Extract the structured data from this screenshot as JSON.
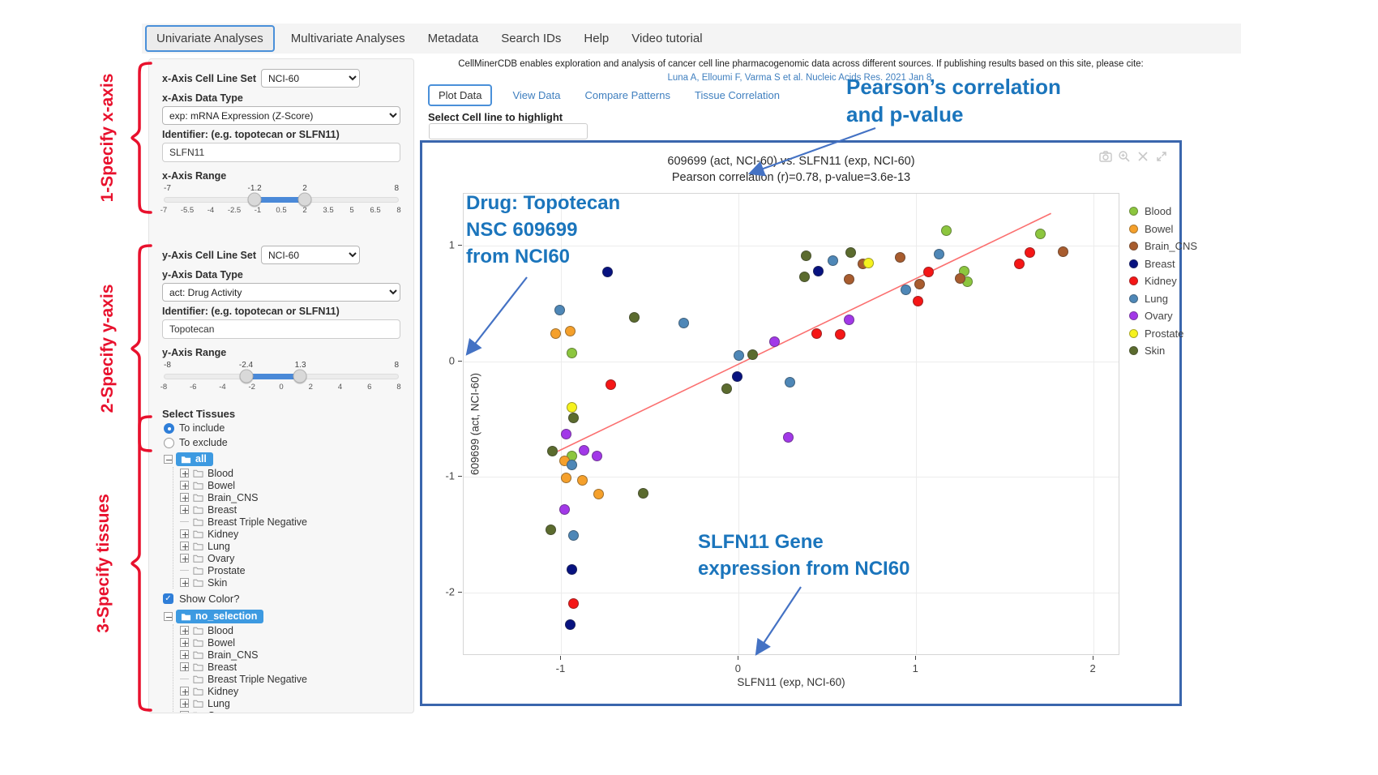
{
  "nav": {
    "items": [
      {
        "label": "Univariate Analyses",
        "active": true
      },
      {
        "label": "Multivariate Analyses",
        "active": false
      },
      {
        "label": "Metadata",
        "active": false
      },
      {
        "label": "Search IDs",
        "active": false
      },
      {
        "label": "Help",
        "active": false
      },
      {
        "label": "Video tutorial",
        "active": false
      }
    ]
  },
  "steps": {
    "step1": "1-Specify x-axis",
    "step2": "2-Specify y-axis",
    "step3": "3-Specify tissues"
  },
  "sidebar": {
    "x_axis": {
      "cell_line_set_label": "x-Axis Cell Line Set",
      "cell_line_set_value": "NCI-60",
      "data_type_label": "x-Axis Data Type",
      "data_type_value": "exp: mRNA Expression (Z-Score)",
      "identifier_label": "Identifier: (e.g. topotecan or SLFN11)",
      "identifier_value": "SLFN11",
      "range_label": "x-Axis Range",
      "range": {
        "min": -7,
        "max": 8,
        "low": -1.2,
        "high": 2,
        "min_label": "-7",
        "max_label": "8",
        "low_label": "-1.2",
        "high_label": "2",
        "ticks": [
          "-7",
          "-5.5",
          "-4",
          "-2.5",
          "-1",
          "0.5",
          "2",
          "3.5",
          "5",
          "6.5",
          "8"
        ]
      }
    },
    "y_axis": {
      "cell_line_set_label": "y-Axis Cell Line Set",
      "cell_line_set_value": "NCI-60",
      "data_type_label": "y-Axis Data Type",
      "data_type_value": "act: Drug Activity",
      "identifier_label": "Identifier: (e.g. topotecan or SLFN11)",
      "identifier_value": "Topotecan",
      "range_label": "y-Axis Range",
      "range": {
        "min": -8,
        "max": 8,
        "low": -2.4,
        "high": 1.3,
        "min_label": "-8",
        "max_label": "8",
        "low_label": "-2.4",
        "high_label": "1.3",
        "ticks": [
          "-8",
          "-6",
          "-4",
          "-2",
          "0",
          "2",
          "4",
          "6",
          "8"
        ]
      }
    },
    "tissues": {
      "label": "Select Tissues",
      "include_option": "To include",
      "exclude_option": "To exclude",
      "selected": "To include"
    },
    "tree_include": {
      "root": "all",
      "items": [
        {
          "label": "Blood",
          "leaf": false
        },
        {
          "label": "Bowel",
          "leaf": false
        },
        {
          "label": "Brain_CNS",
          "leaf": false
        },
        {
          "label": "Breast",
          "leaf": false
        },
        {
          "label": "Breast Triple Negative",
          "leaf": true
        },
        {
          "label": "Kidney",
          "leaf": false
        },
        {
          "label": "Lung",
          "leaf": false
        },
        {
          "label": "Ovary",
          "leaf": false
        },
        {
          "label": "Prostate",
          "leaf": true
        },
        {
          "label": "Skin",
          "leaf": false
        }
      ]
    },
    "show_color_label": "Show Color?",
    "show_color_checked": true,
    "tree_exclude": {
      "root": "no_selection",
      "items": [
        {
          "label": "Blood",
          "leaf": false
        },
        {
          "label": "Bowel",
          "leaf": false
        },
        {
          "label": "Brain_CNS",
          "leaf": false
        },
        {
          "label": "Breast",
          "leaf": false
        },
        {
          "label": "Breast Triple Negative",
          "leaf": true
        },
        {
          "label": "Kidney",
          "leaf": false
        },
        {
          "label": "Lung",
          "leaf": false
        },
        {
          "label": "Ovary",
          "leaf": false
        },
        {
          "label": "Prostate",
          "leaf": true
        },
        {
          "label": "Skin",
          "leaf": false
        }
      ]
    }
  },
  "main": {
    "citation_text": "CellMinerCDB enables exploration and analysis of cancer cell line pharmacogenomic data across different sources. If publishing results based on this site, please cite:",
    "citation_link": "Luna A, Elloumi F, Varma S et al. Nucleic Acids Res. 2021 Jan 8.",
    "tabs": [
      {
        "label": "Plot Data",
        "active": true
      },
      {
        "label": "View Data",
        "active": false
      },
      {
        "label": "Compare Patterns",
        "active": false
      },
      {
        "label": "Tissue Correlation",
        "active": false
      }
    ],
    "highlight_label": "Select Cell line to highlight"
  },
  "annotations": {
    "color": "#1b75bc",
    "pearson": {
      "line1": "Pearson’s correlation",
      "line2": "and p-value"
    },
    "drug": {
      "line1": "Drug: Topotecan",
      "line2": "NSC 609699",
      "line3": "from NCI60"
    },
    "gene": {
      "line1": "SLFN11 Gene",
      "line2": "expression from NCI60"
    }
  },
  "modebar": {
    "icons": [
      "camera",
      "zoom-in",
      "close",
      "expand"
    ]
  },
  "chart_data": {
    "type": "scatter",
    "title": "609699 (act, NCI-60) vs. SLFN11 (exp, NCI-60)",
    "subtitle": "Pearson correlation (r)=0.78, p-value=3.6e-13",
    "xlabel": "SLFN11 (exp, NCI-60)",
    "ylabel": "609699 (act, NCI-60)",
    "xlim": [
      -1.55,
      2.15
    ],
    "ylim": [
      -2.55,
      1.45
    ],
    "xticks": [
      -1,
      0,
      1,
      2
    ],
    "yticks": [
      1,
      0,
      -1,
      -2
    ],
    "grid": true,
    "legend_position": "right",
    "regression_line": {
      "x1": -1.02,
      "y1": -0.78,
      "x2": 1.76,
      "y2": 1.28,
      "color": "#fb7070"
    },
    "series": [
      {
        "name": "Blood",
        "color": "#8cc63e",
        "points": [
          [
            1.17,
            1.13
          ],
          [
            1.7,
            1.1
          ],
          [
            1.27,
            0.78
          ],
          [
            1.29,
            0.69
          ],
          [
            -0.94,
            0.07
          ],
          [
            -0.94,
            -0.82
          ]
        ]
      },
      {
        "name": "Bowel",
        "color": "#f5a02b",
        "points": [
          [
            -1.03,
            0.24
          ],
          [
            -0.95,
            0.26
          ],
          [
            -0.98,
            -0.86
          ],
          [
            -0.97,
            -1.01
          ],
          [
            -0.88,
            -1.03
          ],
          [
            -0.79,
            -1.15
          ]
        ]
      },
      {
        "name": "Brain_CNS",
        "color": "#a85c2e",
        "points": [
          [
            0.91,
            0.9
          ],
          [
            1.83,
            0.95
          ],
          [
            0.7,
            0.84
          ],
          [
            0.62,
            0.71
          ],
          [
            1.25,
            0.72
          ],
          [
            1.02,
            0.67
          ]
        ]
      },
      {
        "name": "Breast",
        "color": "#071280",
        "points": [
          [
            -0.74,
            0.77
          ],
          [
            0.45,
            0.78
          ],
          [
            -0.01,
            -0.13
          ],
          [
            -0.94,
            -1.8
          ],
          [
            -0.95,
            -2.28
          ]
        ]
      },
      {
        "name": "Kidney",
        "color": "#f51616",
        "points": [
          [
            1.64,
            0.94
          ],
          [
            1.58,
            0.84
          ],
          [
            1.07,
            0.77
          ],
          [
            1.01,
            0.52
          ],
          [
            0.44,
            0.24
          ],
          [
            0.57,
            0.23
          ],
          [
            -0.72,
            -0.2
          ],
          [
            -0.93,
            -2.1
          ]
        ]
      },
      {
        "name": "Lung",
        "color": "#4e87b7",
        "points": [
          [
            1.13,
            0.93
          ],
          [
            0.53,
            0.87
          ],
          [
            0.94,
            0.62
          ],
          [
            -1.01,
            0.44
          ],
          [
            -0.31,
            0.33
          ],
          [
            0.0,
            0.05
          ],
          [
            0.29,
            -0.18
          ],
          [
            -0.94,
            -0.9
          ],
          [
            -0.93,
            -1.51
          ]
        ]
      },
      {
        "name": "Ovary",
        "color": "#a238e8",
        "points": [
          [
            0.62,
            0.36
          ],
          [
            0.2,
            0.17
          ],
          [
            0.28,
            -0.66
          ],
          [
            -0.97,
            -0.63
          ],
          [
            -0.87,
            -0.77
          ],
          [
            -0.8,
            -0.82
          ],
          [
            -0.98,
            -1.28
          ]
        ]
      },
      {
        "name": "Prostate",
        "color": "#f6f21d",
        "points": [
          [
            0.73,
            0.85
          ],
          [
            -0.94,
            -0.4
          ]
        ]
      },
      {
        "name": "Skin",
        "color": "#5b6b2e",
        "points": [
          [
            0.63,
            0.94
          ],
          [
            0.38,
            0.91
          ],
          [
            0.37,
            0.73
          ],
          [
            -0.59,
            0.38
          ],
          [
            0.08,
            0.06
          ],
          [
            -0.07,
            -0.24
          ],
          [
            -0.93,
            -0.49
          ],
          [
            -1.05,
            -0.78
          ],
          [
            -0.54,
            -1.14
          ],
          [
            -1.06,
            -1.46
          ]
        ]
      }
    ]
  }
}
